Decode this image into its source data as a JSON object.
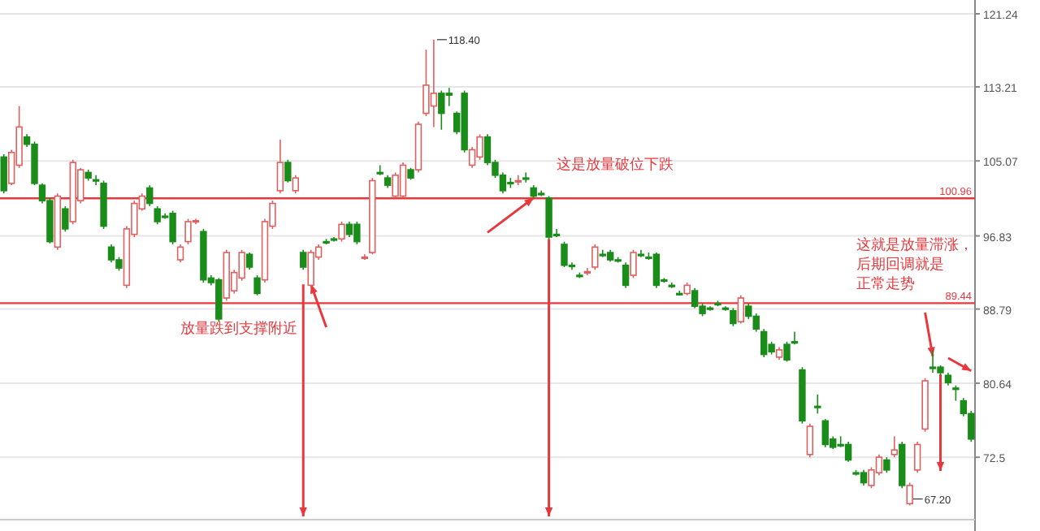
{
  "chart_data": {
    "type": "candlestick",
    "categories": [
      null,
      null,
      null,
      null,
      null,
      null,
      null,
      null,
      null,
      null,
      null,
      null,
      null,
      null,
      null,
      null,
      null,
      null,
      null,
      null,
      null,
      null,
      null,
      null,
      null,
      null,
      null,
      null,
      null,
      null,
      null,
      null,
      null,
      null,
      null,
      null,
      null,
      null,
      null,
      null,
      null,
      null,
      null,
      null,
      null,
      null,
      null,
      null,
      null,
      null,
      null,
      null,
      null,
      null,
      null,
      null,
      null,
      null,
      null,
      null,
      null,
      null,
      null,
      null,
      null,
      null,
      null,
      null,
      null,
      null,
      null,
      null,
      null,
      null,
      null,
      null,
      null,
      null,
      null,
      null,
      null,
      null,
      null,
      null,
      null,
      null,
      null,
      null,
      null,
      null,
      null,
      null,
      null,
      null,
      null,
      null,
      null,
      null,
      null,
      null,
      null,
      null,
      null,
      null,
      null,
      null,
      null,
      null,
      null,
      null,
      null,
      null,
      null,
      null,
      null,
      null,
      null,
      null,
      null,
      null,
      null,
      null,
      null,
      null,
      null,
      null,
      null
    ],
    "ohlc": [
      [
        105.5,
        105.8,
        101.5,
        101.8
      ],
      [
        102.6,
        106.3,
        102.4,
        106.0
      ],
      [
        104.6,
        111.1,
        104.3,
        108.8
      ],
      [
        107.7,
        108.0,
        106.6,
        106.9
      ],
      [
        106.9,
        107.2,
        102.4,
        102.6
      ],
      [
        102.4,
        102.6,
        100.4,
        100.7
      ],
      [
        100.7,
        101.0,
        96.0,
        96.2
      ],
      [
        95.6,
        101.5,
        95.3,
        101.2
      ],
      [
        99.8,
        100.1,
        97.3,
        97.6
      ],
      [
        98.4,
        105.2,
        98.1,
        104.9
      ],
      [
        100.7,
        104.3,
        100.4,
        104.1
      ],
      [
        103.8,
        104.1,
        102.9,
        103.2
      ],
      [
        103.0,
        103.5,
        102.4,
        102.9
      ],
      [
        102.6,
        102.9,
        97.6,
        97.9
      ],
      [
        95.6,
        95.9,
        93.9,
        94.2
      ],
      [
        94.2,
        94.5,
        93.0,
        93.3
      ],
      [
        91.4,
        97.9,
        91.1,
        97.6
      ],
      [
        97.0,
        100.7,
        96.7,
        100.4
      ],
      [
        99.8,
        101.5,
        99.6,
        101.2
      ],
      [
        102.1,
        102.4,
        100.1,
        100.4
      ],
      [
        99.8,
        100.1,
        98.1,
        98.4
      ],
      [
        99.0,
        99.3,
        98.7,
        98.9
      ],
      [
        99.3,
        99.6,
        95.9,
        96.2
      ],
      [
        94.2,
        95.9,
        93.9,
        95.6
      ],
      [
        96.2,
        98.7,
        95.9,
        98.4
      ],
      [
        98.4,
        98.7,
        98.1,
        98.5
      ],
      [
        97.3,
        97.6,
        91.7,
        92.0
      ],
      [
        92.2,
        92.5,
        91.4,
        91.7
      ],
      [
        92.0,
        92.2,
        87.4,
        87.7
      ],
      [
        90.0,
        95.3,
        89.7,
        95.0
      ],
      [
        90.8,
        93.1,
        90.5,
        92.8
      ],
      [
        92.2,
        95.3,
        91.9,
        95.0
      ],
      [
        94.8,
        95.0,
        93.1,
        93.4
      ],
      [
        92.2,
        92.5,
        90.3,
        90.5
      ],
      [
        92.0,
        98.7,
        91.7,
        98.4
      ],
      [
        97.9,
        100.7,
        97.6,
        100.4
      ],
      [
        101.8,
        107.4,
        101.5,
        104.9
      ],
      [
        104.9,
        105.2,
        102.7,
        102.9
      ],
      [
        101.8,
        103.5,
        101.5,
        103.2
      ],
      [
        95.0,
        95.3,
        93.1,
        93.4
      ],
      [
        91.4,
        95.3,
        91.1,
        95.0
      ],
      [
        94.5,
        95.9,
        94.2,
        95.6
      ],
      [
        96.2,
        96.5,
        95.9,
        96.1
      ],
      [
        96.5,
        96.7,
        96.2,
        96.4
      ],
      [
        96.5,
        98.4,
        96.2,
        98.1
      ],
      [
        98.1,
        98.4,
        96.7,
        97.0
      ],
      [
        98.1,
        98.4,
        95.9,
        96.2
      ],
      [
        94.5,
        94.8,
        94.2,
        94.5
      ],
      [
        95.0,
        103.2,
        94.8,
        102.9
      ],
      [
        103.8,
        104.6,
        103.5,
        103.7
      ],
      [
        103.2,
        103.5,
        102.1,
        102.4
      ],
      [
        101.2,
        103.8,
        101.0,
        103.5
      ],
      [
        101.2,
        104.9,
        101.0,
        104.6
      ],
      [
        104.1,
        104.3,
        103.0,
        103.2
      ],
      [
        104.1,
        109.4,
        103.8,
        109.1
      ],
      [
        110.3,
        117.3,
        110.0,
        113.4
      ],
      [
        111.1,
        118.4,
        108.8,
        112.5
      ],
      [
        112.5,
        112.8,
        108.5,
        110.3
      ],
      [
        112.5,
        113.1,
        111.1,
        112.3
      ],
      [
        110.3,
        110.5,
        108.0,
        108.3
      ],
      [
        112.5,
        112.8,
        106.0,
        106.3
      ],
      [
        104.6,
        106.6,
        104.3,
        106.3
      ],
      [
        105.5,
        108.0,
        105.2,
        107.7
      ],
      [
        107.7,
        108.0,
        104.6,
        104.9
      ],
      [
        104.9,
        105.2,
        103.2,
        103.5
      ],
      [
        103.5,
        103.8,
        101.5,
        101.8
      ],
      [
        102.7,
        103.2,
        102.1,
        102.6
      ],
      [
        102.9,
        103.5,
        102.4,
        102.9
      ],
      [
        103.2,
        103.8,
        102.7,
        103.1
      ],
      [
        102.1,
        102.4,
        101.0,
        101.2
      ],
      [
        101.5,
        101.8,
        101.2,
        101.4
      ],
      [
        101.0,
        101.2,
        96.5,
        96.7
      ],
      [
        97.0,
        97.6,
        96.7,
        96.9
      ],
      [
        95.9,
        96.2,
        93.4,
        93.6
      ],
      [
        93.6,
        93.9,
        93.1,
        93.5
      ],
      [
        92.5,
        92.8,
        92.2,
        92.4
      ],
      [
        92.8,
        93.3,
        92.5,
        92.9
      ],
      [
        93.4,
        95.9,
        93.1,
        95.6
      ],
      [
        94.8,
        95.3,
        94.5,
        94.7
      ],
      [
        95.0,
        95.3,
        94.0,
        94.2
      ],
      [
        94.2,
        94.5,
        93.9,
        94.1
      ],
      [
        93.6,
        93.9,
        91.1,
        91.4
      ],
      [
        92.5,
        95.3,
        92.2,
        95.0
      ],
      [
        94.8,
        95.3,
        94.5,
        94.7
      ],
      [
        94.5,
        95.0,
        94.2,
        94.4
      ],
      [
        94.8,
        95.0,
        91.1,
        91.4
      ],
      [
        92.0,
        92.2,
        91.7,
        91.9
      ],
      [
        91.4,
        91.7,
        91.1,
        91.3
      ],
      [
        90.5,
        90.8,
        90.3,
        90.4
      ],
      [
        90.5,
        91.7,
        90.3,
        91.4
      ],
      [
        90.8,
        91.1,
        88.9,
        89.1
      ],
      [
        89.1,
        89.4,
        88.0,
        88.3
      ],
      [
        88.9,
        89.1,
        88.6,
        88.8
      ],
      [
        89.4,
        89.7,
        89.1,
        89.3
      ],
      [
        88.9,
        89.1,
        88.6,
        88.8
      ],
      [
        88.6,
        88.9,
        86.9,
        87.2
      ],
      [
        87.4,
        90.3,
        87.2,
        90.0
      ],
      [
        89.1,
        89.4,
        87.7,
        88.0
      ],
      [
        88.0,
        88.3,
        86.3,
        86.6
      ],
      [
        86.3,
        86.6,
        83.5,
        83.8
      ],
      [
        84.9,
        85.2,
        83.8,
        84.1
      ],
      [
        83.5,
        84.6,
        83.2,
        84.3
      ],
      [
        84.9,
        85.2,
        83.0,
        83.2
      ],
      [
        85.2,
        86.3,
        84.9,
        85.1
      ],
      [
        82.1,
        82.4,
        76.2,
        76.5
      ],
      [
        72.8,
        76.2,
        72.5,
        75.9
      ],
      [
        78.1,
        79.4,
        77.3,
        78.0
      ],
      [
        76.5,
        76.7,
        73.6,
        73.9
      ],
      [
        74.5,
        74.8,
        73.4,
        73.6
      ],
      [
        73.9,
        74.8,
        73.6,
        73.8
      ],
      [
        73.9,
        74.2,
        72.0,
        72.2
      ],
      [
        70.8,
        71.1,
        70.5,
        70.7
      ],
      [
        70.8,
        71.1,
        69.4,
        69.7
      ],
      [
        69.4,
        71.4,
        69.1,
        71.1
      ],
      [
        70.8,
        72.8,
        70.5,
        72.5
      ],
      [
        72.2,
        72.5,
        70.8,
        71.1
      ],
      [
        72.8,
        74.8,
        72.5,
        73.3
      ],
      [
        73.9,
        74.2,
        69.1,
        69.4
      ],
      [
        67.4,
        69.7,
        67.2,
        69.4
      ],
      [
        71.1,
        74.2,
        70.8,
        73.9
      ],
      [
        75.6,
        81.2,
        75.3,
        80.9
      ],
      [
        82.4,
        84.3,
        81.8,
        82.3
      ],
      [
        82.4,
        82.6,
        81.5,
        81.8
      ],
      [
        81.5,
        81.8,
        80.4,
        80.7
      ],
      [
        80.1,
        80.4,
        78.7,
        80.0
      ],
      [
        78.7,
        79.0,
        77.0,
        77.3
      ],
      [
        77.3,
        77.6,
        74.2,
        74.5
      ]
    ],
    "ylim": [
      66.0,
      122.4
    ],
    "yticks": [
      121.24,
      113.21,
      105.07,
      96.83,
      88.79,
      80.64,
      72.5
    ],
    "grid": "y",
    "ref_lines": [
      {
        "axis": "y",
        "value": 100.96,
        "label": "100.96",
        "color": "#e8383d"
      },
      {
        "axis": "y",
        "value": 89.44,
        "label": "89.44",
        "color": "#e8383d"
      }
    ],
    "annotations": [
      "放量跌到支撑附近",
      "这是放量破位下跌",
      "这就是放量滞涨，后期回调就是正常走势",
      "118.40",
      "67.20"
    ]
  }
}
